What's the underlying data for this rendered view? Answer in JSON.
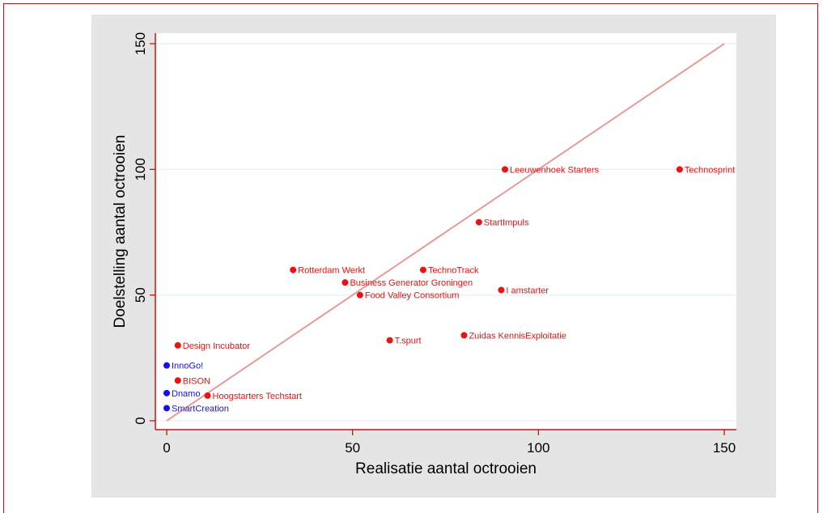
{
  "chart_data": {
    "type": "scatter",
    "title": "",
    "xlabel": "Realisatie aantal octrooien",
    "ylabel": "Doelstelling aantal octrooien",
    "xlim": [
      -3,
      152
    ],
    "ylim": [
      -4,
      152
    ],
    "xticks": [
      0,
      50,
      100,
      150
    ],
    "yticks": [
      0,
      50,
      100,
      150
    ],
    "grid": true,
    "reference_line": {
      "from": [
        0,
        0
      ],
      "to": [
        150,
        150
      ],
      "color": "#e89a98"
    },
    "series": [
      {
        "color": "#ee1111",
        "points": [
          {
            "x": 91,
            "y": 100,
            "label": "Leeuwenhoek Starters"
          },
          {
            "x": 138,
            "y": 100,
            "label": "Technosprint"
          },
          {
            "x": 84,
            "y": 79,
            "label": "StartImpuls"
          },
          {
            "x": 34,
            "y": 60,
            "label": "Rotterdam Werkt"
          },
          {
            "x": 69,
            "y": 60,
            "label": "TechnoTrack"
          },
          {
            "x": 48,
            "y": 55,
            "label": "Business Generator Groningen"
          },
          {
            "x": 90,
            "y": 52,
            "label": "I amstarter"
          },
          {
            "x": 52,
            "y": 50,
            "label": "Food Valley Consortium"
          },
          {
            "x": 80,
            "y": 34,
            "label": "Zuidas KennisExploitatie"
          },
          {
            "x": 60,
            "y": 32,
            "label": "T.spurt"
          },
          {
            "x": 3,
            "y": 30,
            "label": "Design Incubator"
          },
          {
            "x": 3,
            "y": 16,
            "label": "BISON"
          },
          {
            "x": 11,
            "y": 10,
            "label": "Hoogstarters Techstart"
          }
        ]
      },
      {
        "color": "#1111ee",
        "points": [
          {
            "x": 0,
            "y": 22,
            "label": "InnoGo!"
          },
          {
            "x": 0,
            "y": 11,
            "label": "Dnamo"
          },
          {
            "x": 0,
            "y": 5,
            "label": "SmartCreation"
          }
        ]
      }
    ]
  }
}
